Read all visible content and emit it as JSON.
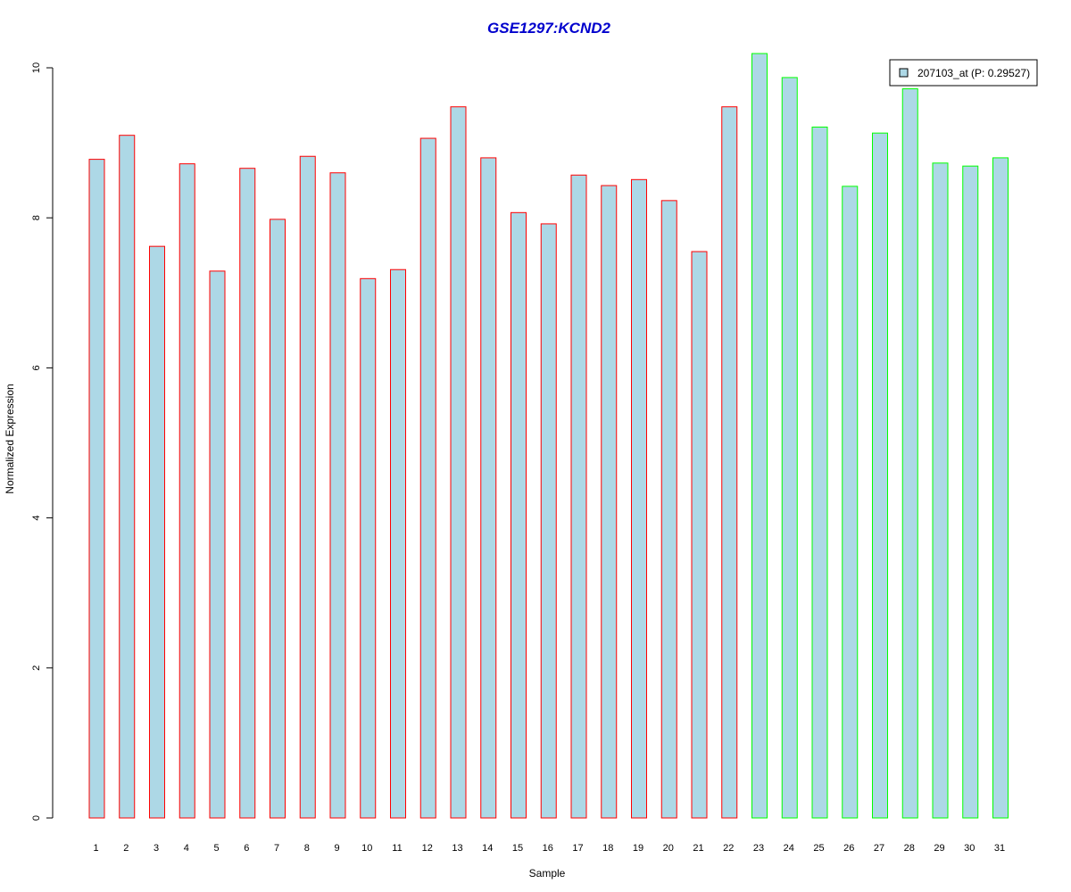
{
  "chart_data": {
    "type": "bar",
    "title": "GSE1297:KCND2",
    "xlabel": "Sample",
    "ylabel": "Normalized Expression",
    "ylim": [
      0,
      10
    ],
    "yticks": [
      0,
      2,
      4,
      6,
      8,
      10
    ],
    "categories": [
      "1",
      "2",
      "3",
      "4",
      "5",
      "6",
      "7",
      "8",
      "9",
      "10",
      "11",
      "12",
      "13",
      "14",
      "15",
      "16",
      "17",
      "18",
      "19",
      "20",
      "21",
      "22",
      "23",
      "24",
      "25",
      "26",
      "27",
      "28",
      "29",
      "30",
      "31"
    ],
    "values": [
      8.78,
      9.1,
      7.62,
      8.72,
      7.29,
      8.66,
      7.98,
      8.82,
      8.6,
      7.19,
      7.31,
      9.06,
      9.48,
      8.8,
      8.07,
      7.92,
      8.57,
      8.43,
      8.51,
      8.23,
      7.55,
      9.48,
      10.19,
      9.87,
      9.21,
      8.42,
      9.13,
      9.72,
      8.73,
      8.69,
      8.8
    ],
    "groups": [
      "red",
      "red",
      "red",
      "red",
      "red",
      "red",
      "red",
      "red",
      "red",
      "red",
      "red",
      "red",
      "red",
      "red",
      "red",
      "red",
      "red",
      "red",
      "red",
      "red",
      "red",
      "red",
      "green",
      "green",
      "green",
      "green",
      "green",
      "green",
      "green",
      "green",
      "green"
    ],
    "series": [
      {
        "name": "207103_at (P: 0.29527)",
        "values": [
          8.78,
          9.1,
          7.62,
          8.72,
          7.29,
          8.66,
          7.98,
          8.82,
          8.6,
          7.19,
          7.31,
          9.06,
          9.48,
          8.8,
          8.07,
          7.92,
          8.57,
          8.43,
          8.51,
          8.23,
          7.55,
          9.48,
          10.19,
          9.87,
          9.21,
          8.42,
          9.13,
          9.72,
          8.73,
          8.69,
          8.8
        ]
      }
    ],
    "legend_position": "top-right",
    "grid": false,
    "colors": {
      "bar_fill": "#add8e6",
      "group_red_border": "#ff0000",
      "group_green_border": "#00ff00",
      "title": "#0000cd"
    }
  }
}
